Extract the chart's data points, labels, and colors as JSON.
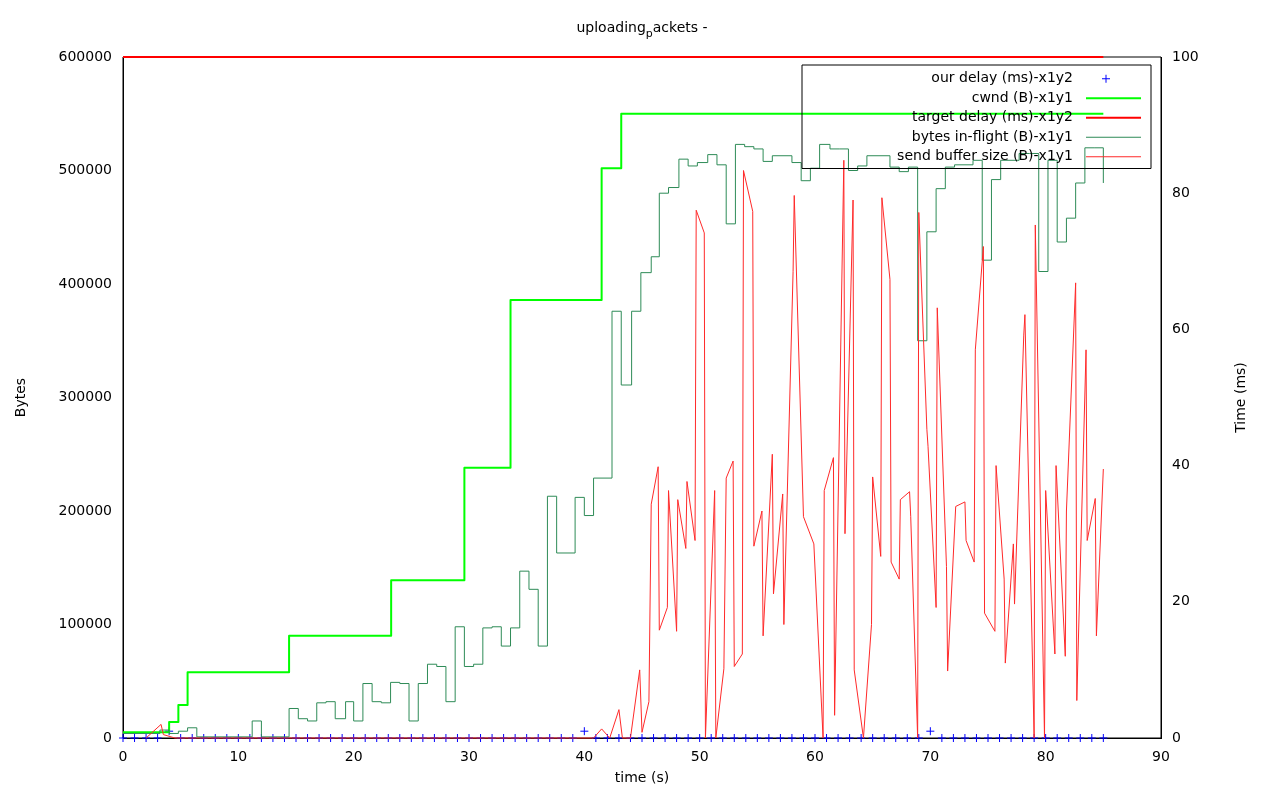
{
  "chart_data": {
    "type": "line",
    "title": "uploading$_{p}$ackets -",
    "xlabel": "time (s)",
    "ylabel": "Bytes",
    "y2label": "Time (ms)",
    "xlim": [
      0,
      90
    ],
    "xticks": [
      0,
      10,
      20,
      30,
      40,
      50,
      60,
      70,
      80,
      90
    ],
    "ylim": [
      0,
      600000
    ],
    "yticks": [
      0,
      100000,
      200000,
      300000,
      400000,
      500000,
      600000
    ],
    "y2lim": [
      0,
      100
    ],
    "y2ticks": [
      0,
      20,
      40,
      60,
      80,
      100
    ],
    "grid": false,
    "legend": "top right",
    "series": [
      {
        "name": "our delay (ms)-x1y2",
        "type": "scatter",
        "axis": "y2",
        "marker": "cross",
        "color": "#0000ff",
        "x": [
          0,
          1,
          2,
          3,
          4,
          5,
          6,
          7,
          8,
          9,
          10,
          11,
          12,
          13,
          14,
          15,
          16,
          17,
          18,
          19,
          20,
          21,
          22,
          23,
          24,
          25,
          26,
          27,
          28,
          29,
          30,
          31,
          32,
          33,
          34,
          35,
          36,
          37,
          38,
          39,
          40,
          41,
          42,
          43,
          44,
          45,
          46,
          47,
          48,
          49,
          50,
          51,
          52,
          53,
          54,
          55,
          56,
          57,
          58,
          59,
          60,
          61,
          62,
          63,
          64,
          65,
          66,
          67,
          68,
          69,
          70,
          71,
          72,
          73,
          74,
          75,
          76,
          77,
          78,
          79,
          80,
          81,
          82,
          83,
          84,
          85
        ],
        "values": [
          0,
          0,
          0,
          0,
          1,
          0,
          0,
          0,
          0,
          0,
          0,
          0,
          0,
          0,
          0,
          0,
          0,
          0,
          0,
          0,
          0,
          0,
          0,
          0,
          0,
          0,
          0,
          0,
          0,
          0,
          0,
          0,
          0,
          0,
          0,
          0,
          0,
          0,
          0,
          0,
          1,
          0,
          0,
          0,
          0,
          0,
          0,
          0,
          0,
          0,
          0,
          0,
          0,
          0,
          0,
          0,
          0,
          0,
          0,
          0,
          0,
          0,
          0,
          0,
          0,
          0,
          0,
          0,
          0,
          0,
          1,
          0,
          0,
          0,
          0,
          0,
          0,
          0,
          0,
          0,
          0,
          0,
          0,
          0,
          0,
          0
        ]
      },
      {
        "name": "cwnd (B)-x1y1",
        "type": "step",
        "color": "#00ff00",
        "x": [
          0,
          4.0,
          4.8,
          5.6,
          14.4,
          23.25,
          29.6,
          33.6,
          41.5,
          43.2,
          85
        ],
        "values": [
          5000,
          14000,
          29000,
          58000,
          90000,
          139000,
          238000,
          386000,
          502000,
          550000,
          550000
        ]
      },
      {
        "name": "target delay (ms)-x1y2",
        "type": "line",
        "axis": "y2",
        "color": "#ff0000",
        "x": [
          0,
          85
        ],
        "values": [
          100,
          100
        ]
      },
      {
        "name": "bytes in-flight (B)-x1y1",
        "type": "step",
        "color": "#2e8b57",
        "x": [
          0,
          3.2,
          4.0,
          4.8,
          5.6,
          6.4,
          11.2,
          12.0,
          14.4,
          15.2,
          16.0,
          16.8,
          17.6,
          18.4,
          19.3,
          20.0,
          20.8,
          21.6,
          22.4,
          23.2,
          24.0,
          24.8,
          25.6,
          26.4,
          27.2,
          28.0,
          28.8,
          29.6,
          30.4,
          31.2,
          32.0,
          32.8,
          33.6,
          34.4,
          35.2,
          36.0,
          36.8,
          37.6,
          39.2,
          40.0,
          40.8,
          42.4,
          43.2,
          44.1,
          44.9,
          45.8,
          46.5,
          47.3,
          48.2,
          49.0,
          49.8,
          50.7,
          51.5,
          52.3,
          53.1,
          53.9,
          54.7,
          55.5,
          56.3,
          58.0,
          58.8,
          59.6,
          60.4,
          61.3,
          62.1,
          62.9,
          63.7,
          64.5,
          66.5,
          67.3,
          68.1,
          68.9,
          69.7,
          70.5,
          71.3,
          72.1,
          73.7,
          74.5,
          75.3,
          76.1,
          77.7,
          78.6,
          79.4,
          80.2,
          81.0,
          81.8,
          82.6,
          83.4,
          84.2,
          85.0
        ],
        "values": [
          4000,
          7000,
          4000,
          6000,
          9000,
          1000,
          15000,
          1000,
          26000,
          17000,
          15000,
          31000,
          32000,
          17000,
          32000,
          15000,
          48000,
          32000,
          31000,
          49000,
          48000,
          15000,
          48000,
          65000,
          63000,
          32000,
          98000,
          63000,
          65000,
          97000,
          98000,
          81000,
          97000,
          147000,
          131000,
          81000,
          213000,
          163000,
          212000,
          196000,
          229000,
          376000,
          311000,
          376000,
          410000,
          424000,
          480000,
          485000,
          510000,
          504000,
          507000,
          514000,
          505000,
          453000,
          523000,
          521000,
          519000,
          508000,
          513000,
          507000,
          491000,
          502000,
          523000,
          519000,
          519000,
          500000,
          504000,
          513000,
          503000,
          499000,
          503000,
          350000,
          446000,
          484000,
          503000,
          505000,
          509000,
          421000,
          492000,
          509000,
          515000,
          515000,
          411000,
          509000,
          437000,
          458000,
          489000,
          520000,
          520000,
          489000
        ]
      },
      {
        "name": "send buffer size (B)-x1y1",
        "type": "line",
        "color": "#ff2a2a",
        "x": [
          2.0,
          3.3,
          3.5,
          4.5,
          40.8,
          41.5,
          42.2,
          43.0,
          43.3,
          44.0,
          44.8,
          45.0,
          45.6,
          45.8,
          46.4,
          46.5,
          47.2,
          47.3,
          48.0,
          48.1,
          48.8,
          48.9,
          49.6,
          49.7,
          50.4,
          50.5,
          51.3,
          51.4,
          52.1,
          52.3,
          52.9,
          53.0,
          53.7,
          53.8,
          54.6,
          54.7,
          55.4,
          55.5,
          56.3,
          56.4,
          57.2,
          57.3,
          58.1,
          58.2,
          59.0,
          59.9,
          60.7,
          60.8,
          61.6,
          61.7,
          62.5,
          62.6,
          63.3,
          63.4,
          64.2,
          64.9,
          65.0,
          65.7,
          65.8,
          66.5,
          66.6,
          67.3,
          67.4,
          68.2,
          68.3,
          68.9,
          69.0,
          69.7,
          69.8,
          70.5,
          70.6,
          71.4,
          71.5,
          72.2,
          73.0,
          73.1,
          73.8,
          73.9,
          74.6,
          74.7,
          75.6,
          75.7,
          76.4,
          76.5,
          77.2,
          77.3,
          78.1,
          78.2,
          79.0,
          79.1,
          79.9,
          80.0,
          80.8,
          80.9,
          81.7,
          81.8,
          82.6,
          82.7,
          83.5,
          83.6,
          84.3,
          84.4,
          85.0
        ],
        "values": [
          0,
          12000,
          3000,
          0,
          0,
          8000,
          0,
          25000,
          0,
          0,
          60000,
          5000,
          32000,
          206000,
          239000,
          95000,
          115000,
          218000,
          94000,
          210000,
          167000,
          226000,
          174000,
          465000,
          445000,
          0,
          218000,
          0,
          61000,
          229000,
          244000,
          63000,
          74000,
          500000,
          464000,
          169000,
          200000,
          90000,
          250000,
          127000,
          215000,
          100000,
          411000,
          478000,
          195000,
          171000,
          0,
          218000,
          247000,
          20000,
          509000,
          180000,
          474000,
          60000,
          0,
          100000,
          230000,
          160000,
          476000,
          404000,
          155000,
          140000,
          210000,
          217000,
          195000,
          0,
          463000,
          272000,
          257000,
          115000,
          379000,
          151000,
          59000,
          204000,
          208000,
          174000,
          155000,
          342000,
          433000,
          110000,
          94000,
          240000,
          140000,
          66000,
          171000,
          118000,
          355000,
          373000,
          0,
          452000,
          0,
          218000,
          74000,
          240000,
          72000,
          200000,
          401000,
          33000,
          342000,
          174000,
          211000,
          90000,
          237000
        ]
      }
    ]
  }
}
